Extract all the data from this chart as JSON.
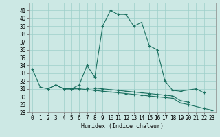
{
  "xlabel": "Humidex (Indice chaleur)",
  "background_color": "#cce8e4",
  "grid_color": "#9ecfca",
  "line_color": "#1a7060",
  "xlim": [
    -0.5,
    23.5
  ],
  "ylim": [
    28,
    42
  ],
  "yticks": [
    28,
    29,
    30,
    31,
    32,
    33,
    34,
    35,
    36,
    37,
    38,
    39,
    40,
    41
  ],
  "xticks": [
    0,
    1,
    2,
    3,
    4,
    5,
    6,
    7,
    8,
    9,
    10,
    11,
    12,
    13,
    14,
    15,
    16,
    17,
    18,
    19,
    20,
    21,
    22,
    23
  ],
  "line1_x": [
    0,
    1,
    2,
    3,
    4,
    5,
    6,
    7,
    8,
    9,
    10,
    11,
    12,
    13,
    14,
    15,
    16,
    17,
    18,
    19,
    21,
    22
  ],
  "line1_y": [
    33.5,
    31.2,
    31.0,
    31.5,
    31.0,
    31.0,
    31.5,
    34.0,
    32.5,
    39.0,
    41.0,
    40.5,
    40.5,
    39.0,
    39.5,
    36.5,
    36.0,
    32.0,
    30.8,
    30.7,
    31.0,
    30.5
  ],
  "line2_x": [
    2,
    3,
    4,
    5,
    6,
    7,
    8,
    9,
    10,
    11,
    12,
    13,
    14,
    15,
    16,
    17,
    18,
    19,
    20
  ],
  "line2_y": [
    31.0,
    31.5,
    31.0,
    31.0,
    31.1,
    31.1,
    31.1,
    31.0,
    30.9,
    30.8,
    30.7,
    30.6,
    30.5,
    30.4,
    30.3,
    30.2,
    30.1,
    29.5,
    29.3
  ],
  "line3_x": [
    2,
    3,
    4,
    5,
    6,
    7,
    8,
    9,
    10,
    11,
    12,
    13,
    14,
    15,
    16,
    17,
    18,
    19,
    20,
    22,
    23
  ],
  "line3_y": [
    31.0,
    31.5,
    31.0,
    31.0,
    31.0,
    30.9,
    30.8,
    30.7,
    30.6,
    30.5,
    30.4,
    30.3,
    30.2,
    30.1,
    30.0,
    29.9,
    29.8,
    29.2,
    29.0,
    28.5,
    28.3
  ]
}
